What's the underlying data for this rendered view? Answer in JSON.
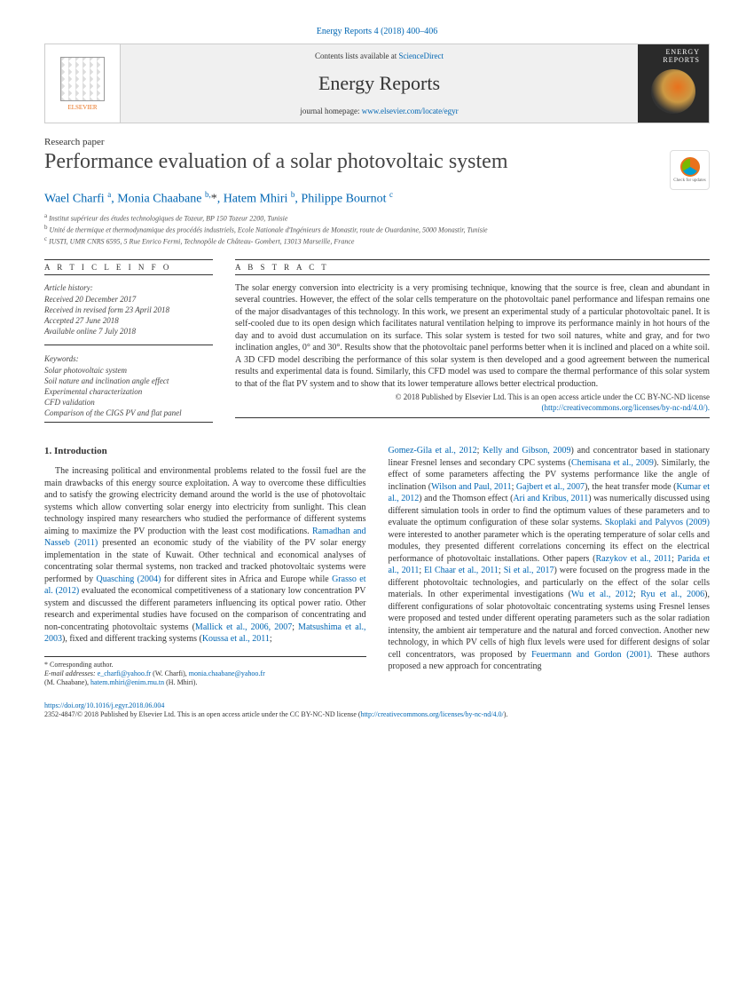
{
  "journal_ref": "Energy Reports 4 (2018) 400–406",
  "header": {
    "publisher": "ELSEVIER",
    "contents_prefix": "Contents lists available at ",
    "contents_link": "ScienceDirect",
    "journal_title": "Energy Reports",
    "homepage_prefix": "journal homepage: ",
    "homepage_link": "www.elsevier.com/locate/egyr",
    "cover_text": "ENERGY REPORTS"
  },
  "paper_type": "Research paper",
  "title": "Performance evaluation of a solar photovoltaic system",
  "updates_badge": "Check for updates",
  "authors_html": "Wael Charfi <sup class='sup'>a</sup>, Monia Chaabane <sup class='sup'>b,</sup><span class='star'>*</span>, Hatem Mhiri <sup class='sup'>b</sup>, Philippe Bournot <sup class='sup'>c</sup>",
  "affiliations": [
    "a  Institut supérieur des études technologiques de Tozeur, BP 150 Tozeur 2200, Tunisie",
    "b  Unité de thermique et thermodynamique des procédés industriels, Ecole Nationale d'Ingénieurs de Monastir, route de Ouardanine, 5000 Monastir, Tunisie",
    "c  IUSTI, UMR CNRS 6595, 5 Rue Enrico Fermi, Technopôle de Château- Gombert, 13013 Marseille, France"
  ],
  "info": {
    "label": "A R T I C L E   I N F O",
    "history_label": "Article history:",
    "history": [
      "Received 20 December 2017",
      "Received in revised form 23 April 2018",
      "Accepted 27 June 2018",
      "Available online 7 July 2018"
    ],
    "keywords_label": "Keywords:",
    "keywords": [
      "Solar photovoltaic system",
      "Soil nature and inclination angle effect",
      "Experimental characterization",
      "CFD validation",
      "Comparison of the CIGS PV and flat panel"
    ]
  },
  "abstract": {
    "label": "A B S T R A C T",
    "text": "The solar energy conversion into electricity is a very promising technique, knowing that the source is free, clean and abundant in several countries. However, the effect of the solar cells temperature on the photovoltaic panel performance and lifespan remains one of the major disadvantages of this technology. In this work, we present an experimental study of a particular photovoltaic panel. It is self-cooled due to its open design which facilitates natural ventilation helping to improve its performance mainly in hot hours of the day and to avoid dust accumulation on its surface. This solar system is tested for two soil natures, white and gray, and for two inclination angles, 0° and 30°. Results show that the photovoltaic panel performs better when it is inclined and placed on a white soil. A 3D CFD model describing the performance of this solar system is then developed and a good agreement between the numerical results and experimental data is found. Similarly, this CFD model was used to compare the thermal performance of this solar system to that of the flat PV system and to show that its lower temperature allows better electrical production.",
    "copyright": "© 2018 Published by Elsevier Ltd. This is an open access article under the CC BY-NC-ND license",
    "license_link": "(http://creativecommons.org/licenses/by-nc-nd/4.0/)."
  },
  "body": {
    "heading": "1. Introduction",
    "col1": "The increasing political and environmental problems related to the fossil fuel are the main drawbacks of this energy source exploitation. A way to overcome these difficulties and to satisfy the growing electricity demand around the world is the use of photovoltaic systems which allow converting solar energy into electricity from sunlight. This clean technology inspired many researchers who studied the performance of different systems aiming to maximize the PV  production with the least cost modifications. <a class='cite' href='#'>Ramadhan and Nasseb (2011)</a> presented an economic study of the viability of the PV solar energy implementation in the state of Kuwait. Other technical and economical analyses of concentrating solar thermal systems, non tracked and tracked photovoltaic systems were performed by <a class='cite' href='#'>Quasching (2004)</a> for different sites in Africa and Europe while <a class='cite' href='#'>Grasso et al. (2012)</a> evaluated the economical competitiveness of a stationary low concentration PV system and discussed the different parameters influencing its optical power ratio. Other research and experimental studies have focused on the comparison of concentrating and non-concentrating photovoltaic systems (<a class='cite' href='#'>Mallick et al., 2006, 2007</a>; <a class='cite' href='#'>Matsushima et al., 2003</a>), fixed and different tracking systems (<a class='cite' href='#'>Koussa et al., 2011</a>;",
    "col2": "<a class='cite' href='#'>Gomez-Gila et al., 2012</a>; <a class='cite' href='#'>Kelly and Gibson, 2009</a>) and concentrator based in stationary linear Fresnel lenses and secondary CPC systems (<a class='cite' href='#'>Chemisana et al., 2009</a>). Similarly, the effect of some parameters affecting the PV systems performance like the angle of inclination (<a class='cite' href='#'>Wilson and Paul, 2011</a>; <a class='cite' href='#'>Gajbert et al., 2007</a>), the heat transfer mode (<a class='cite' href='#'>Kumar et al., 2012</a>) and the Thomson effect (<a class='cite' href='#'>Ari and Kribus, 2011</a>) was numerically discussed using different simulation tools in order to find the optimum values of these parameters and to evaluate the optimum configuration of these solar systems. <a class='cite' href='#'>Skoplaki and Palyvos (2009)</a> were interested to another parameter which is the operating temperature of solar cells and modules, they presented different correlations concerning its effect on the electrical performance of photovoltaic installations. Other papers (<a class='cite' href='#'>Razykov et al., 2011</a>; <a class='cite' href='#'>Parida et al., 2011</a>; <a class='cite' href='#'>El Chaar et al., 2011</a>; <a class='cite' href='#'>Si et al., 2017</a>) were focused on the progress made in the different photovoltaic technologies, and particularly on the effect of the solar cells materials. In other experimental investigations (<a class='cite' href='#'>Wu et al., 2012</a>; <a class='cite' href='#'>Ryu et al., 2006</a>), different configurations of solar photovoltaic concentrating systems using Fresnel lenses were proposed and tested under different operating parameters such as the solar radiation intensity, the ambient air temperature and the natural and forced convection. Another new technology, in which PV cells of high flux levels were used for different designs of solar cell concentrators, was proposed by <a class='cite' href='#'>Feuermann and Gordon (2001)</a>. These authors proposed a new approach for concentrating"
  },
  "corr": {
    "star": "*   Corresponding author.",
    "emails_label": "E-mail addresses: ",
    "e1": "e_charfi@yahoo.fr",
    "n1": " (W. Charfi), ",
    "e2": "monia.chaabane@yahoo.fr",
    "n2": " (M. Chaabane), ",
    "e3": "hatem.mhiri@enim.rnu.tn",
    "n3": " (H. Mhiri)."
  },
  "footer": {
    "doi": "https://doi.org/10.1016/j.egyr.2018.06.004",
    "issn_line": "2352-4847/© 2018 Published by Elsevier Ltd. This is an open access article under the CC BY-NC-ND license (",
    "license": "http://creativecommons.org/licenses/by-nc-nd/4.0/",
    "close": ")."
  }
}
